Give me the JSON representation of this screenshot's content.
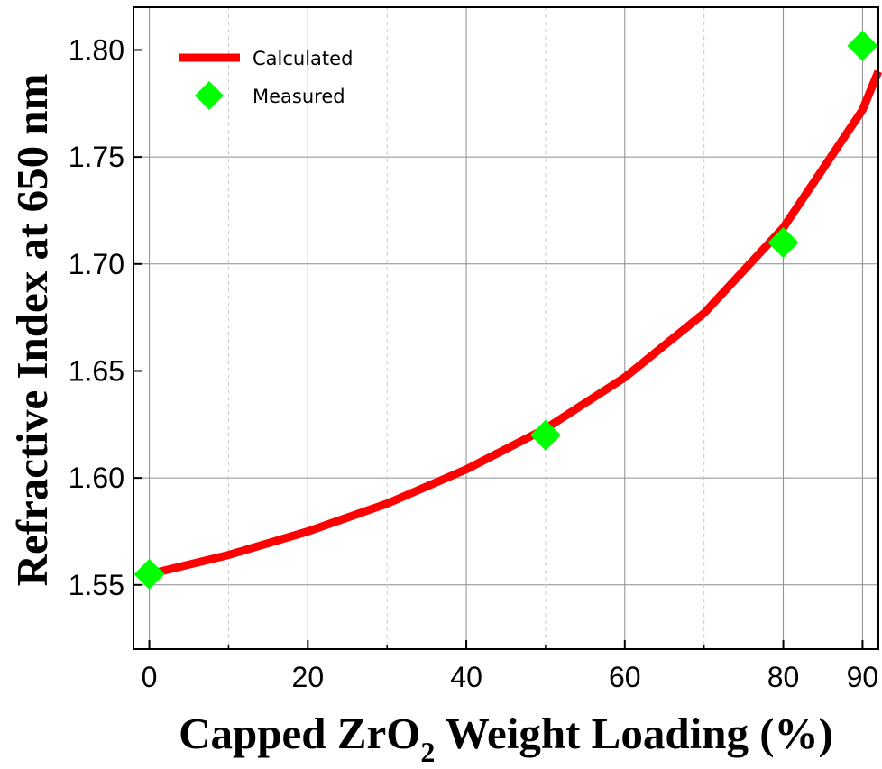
{
  "chart_data": {
    "type": "line",
    "title": "",
    "xlabel": "Capped ZrO",
    "xlabel_subscript": "2",
    "xlabel_suffix": " Weight Loading (%)",
    "ylabel": "Refractive Index at 650 nm",
    "xlim": [
      -2,
      92
    ],
    "ylim": [
      1.52,
      1.82
    ],
    "x_ticks": [
      0,
      20,
      40,
      60,
      80,
      90
    ],
    "x_ticks_minor": [
      10,
      30,
      50,
      70
    ],
    "y_ticks": [
      1.55,
      1.6,
      1.65,
      1.7,
      1.75,
      1.8
    ],
    "y_tick_labels": [
      "1.55",
      "1.60",
      "1.65",
      "1.70",
      "1.75",
      "1.80"
    ],
    "grid": true,
    "legend_position": "top-left",
    "series": [
      {
        "name": "Calculated",
        "kind": "line",
        "color": "#ff0000",
        "x": [
          0,
          10,
          20,
          30,
          40,
          50,
          60,
          70,
          80,
          90,
          92
        ],
        "y": [
          1.555,
          1.564,
          1.575,
          1.588,
          1.604,
          1.623,
          1.647,
          1.677,
          1.717,
          1.772,
          1.79
        ]
      },
      {
        "name": "Measured",
        "kind": "scatter",
        "marker": "diamond",
        "color": "#00ff00",
        "x": [
          0,
          50,
          80,
          90
        ],
        "y": [
          1.555,
          1.62,
          1.71,
          1.802
        ]
      }
    ]
  }
}
